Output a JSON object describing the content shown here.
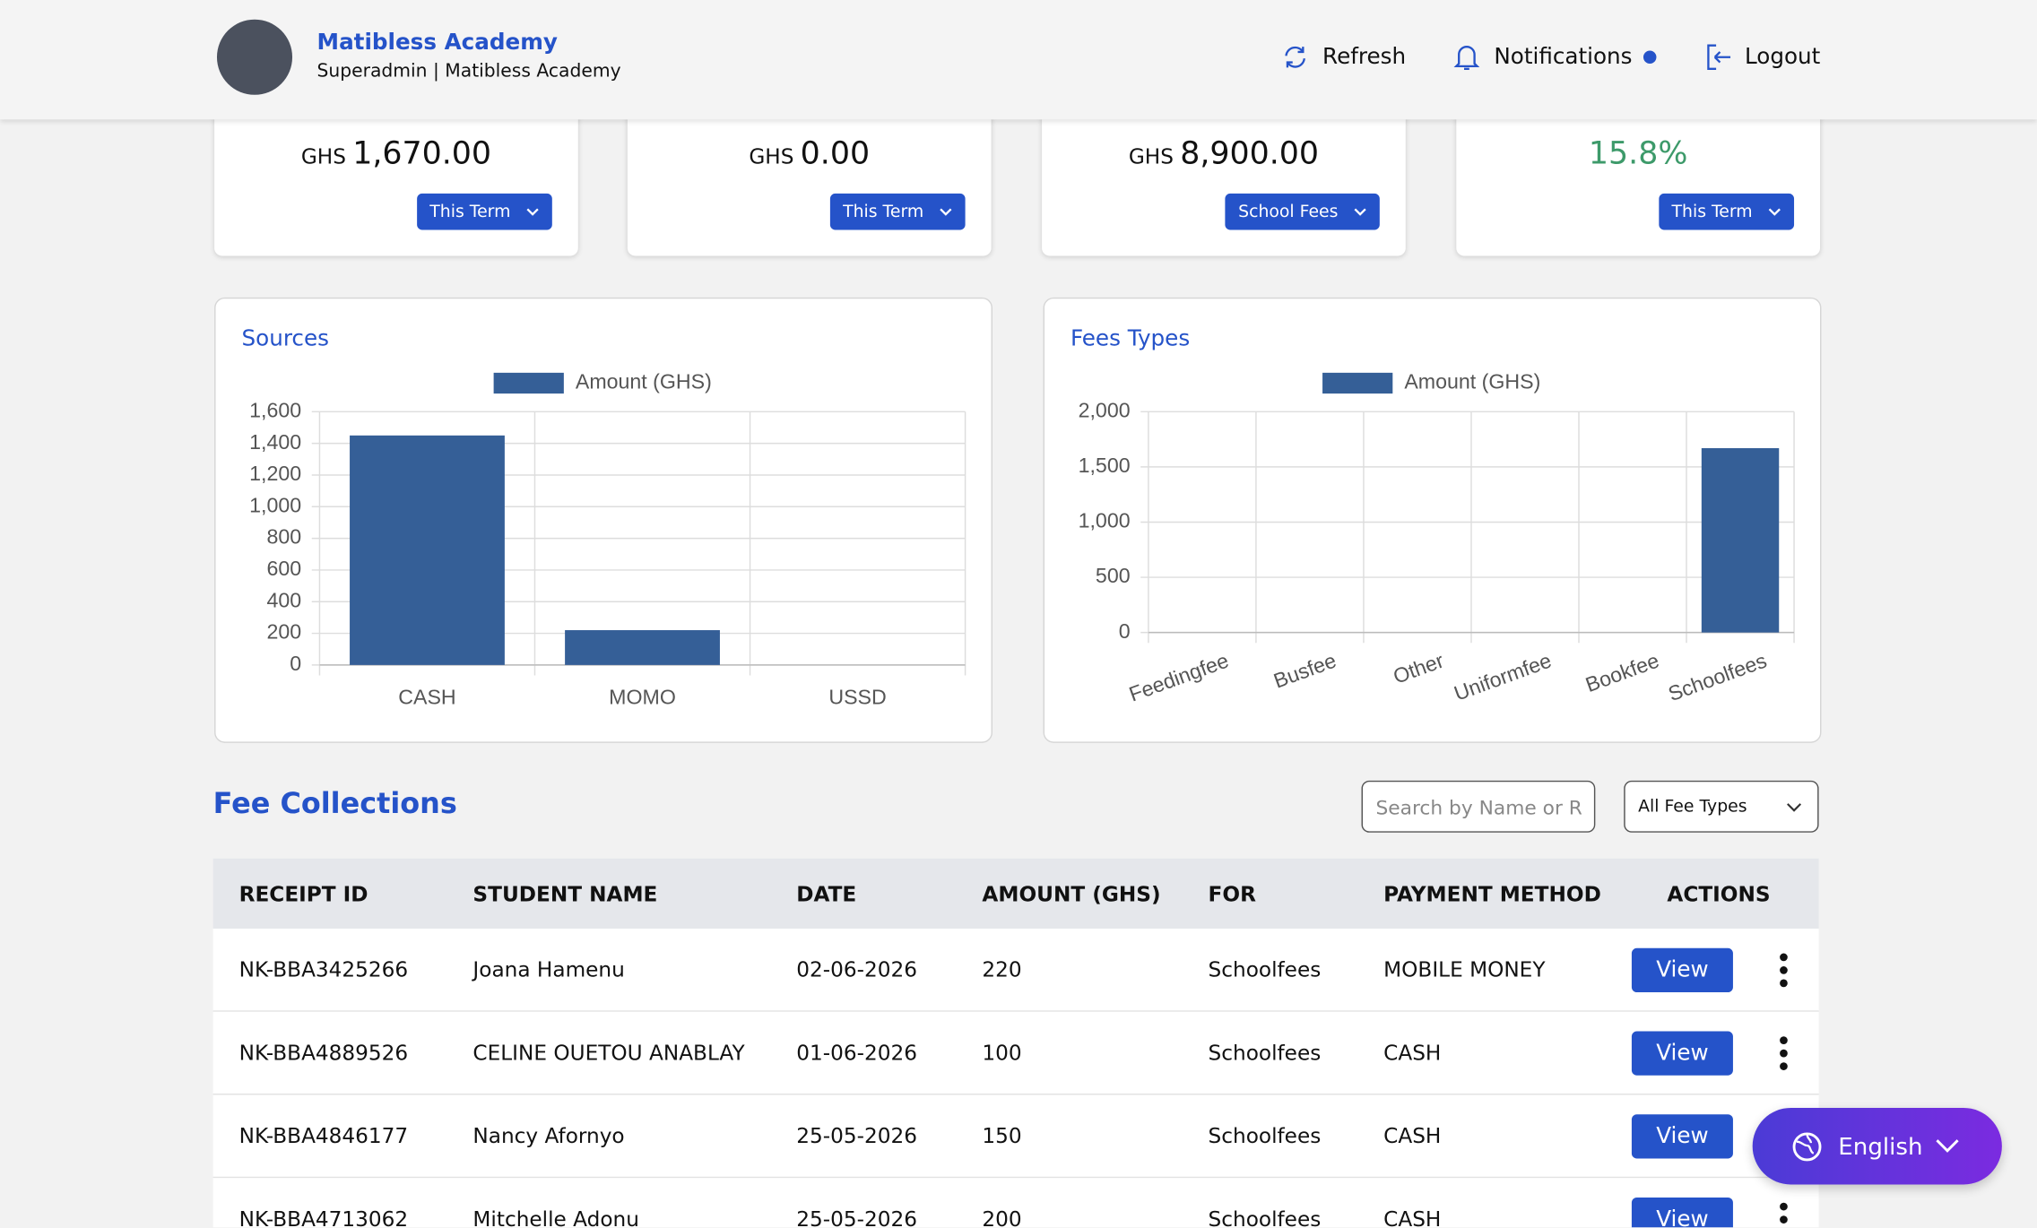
{
  "header": {
    "school": "Matibless Academy",
    "subtitle": "Superadmin | Matibless Academy",
    "refresh": "Refresh",
    "notifications": "Notifications",
    "logout": "Logout"
  },
  "cards": [
    {
      "currency": "GHS",
      "amount": "1,670.00",
      "filter": "This Term"
    },
    {
      "currency": "GHS",
      "amount": "0.00",
      "filter": "This Term"
    },
    {
      "currency": "GHS",
      "amount": "8,900.00",
      "filter": "School Fees"
    },
    {
      "amount": "15.8%",
      "filter": "This Term"
    }
  ],
  "chart_data": [
    {
      "type": "bar",
      "title": "Sources",
      "categories": [
        "CASH",
        "MOMO",
        "USSD"
      ],
      "series": [
        {
          "name": "Amount (GHS)",
          "color": "#355f97",
          "values": [
            1450,
            220,
            0
          ]
        }
      ],
      "ylim": [
        0,
        1600
      ],
      "yticks": [
        0,
        200,
        400,
        600,
        800,
        {
          "value": 1000,
          "label": "1,000"
        },
        {
          "value": 1200,
          "label": "1,200"
        },
        {
          "value": 1400,
          "label": "1,400"
        },
        {
          "value": 1600,
          "label": "1,600"
        }
      ],
      "grid": true
    },
    {
      "type": "bar",
      "title": "Fees Types",
      "categories": [
        "Feedingfee",
        "Busfee",
        "Other",
        "Uniformfee",
        "Bookfee",
        "Schoolfees"
      ],
      "series": [
        {
          "name": "Amount (GHS)",
          "color": "#355f97",
          "values": [
            0,
            0,
            0,
            0,
            0,
            1670
          ]
        }
      ],
      "ylim": [
        0,
        2000
      ],
      "yticks": [
        0,
        500,
        {
          "value": 1000,
          "label": "1,000"
        },
        {
          "value": 1500,
          "label": "1,500"
        },
        {
          "value": 2000,
          "label": "2,000"
        }
      ],
      "grid": true
    }
  ],
  "fee_collections": {
    "title": "Fee Collections",
    "search_placeholder": "Search by Name or R",
    "filter": "All Fee Types",
    "view_label": "View",
    "columns": [
      "RECEIPT ID",
      "STUDENT NAME",
      "DATE",
      "AMOUNT (GHS)",
      "FOR",
      "PAYMENT METHOD",
      "ACTIONS"
    ],
    "rows": [
      [
        "NK-BBA3425266",
        "Joana Hamenu",
        "02-06-2026",
        220,
        "Schoolfees",
        "MOBILE MONEY"
      ],
      [
        "NK-BBA4889526",
        "CELINE OUETOU ANABLAY",
        "01-06-2026",
        100,
        "Schoolfees",
        "CASH"
      ],
      [
        "NK-BBA4846177",
        "Nancy Afornyo",
        "25-05-2026",
        150,
        "Schoolfees",
        "CASH"
      ],
      [
        "NK-BBA4713062",
        "Mitchelle Adonu",
        "25-05-2026",
        200,
        "Schoolfees",
        "CASH"
      ]
    ]
  },
  "language": "English"
}
